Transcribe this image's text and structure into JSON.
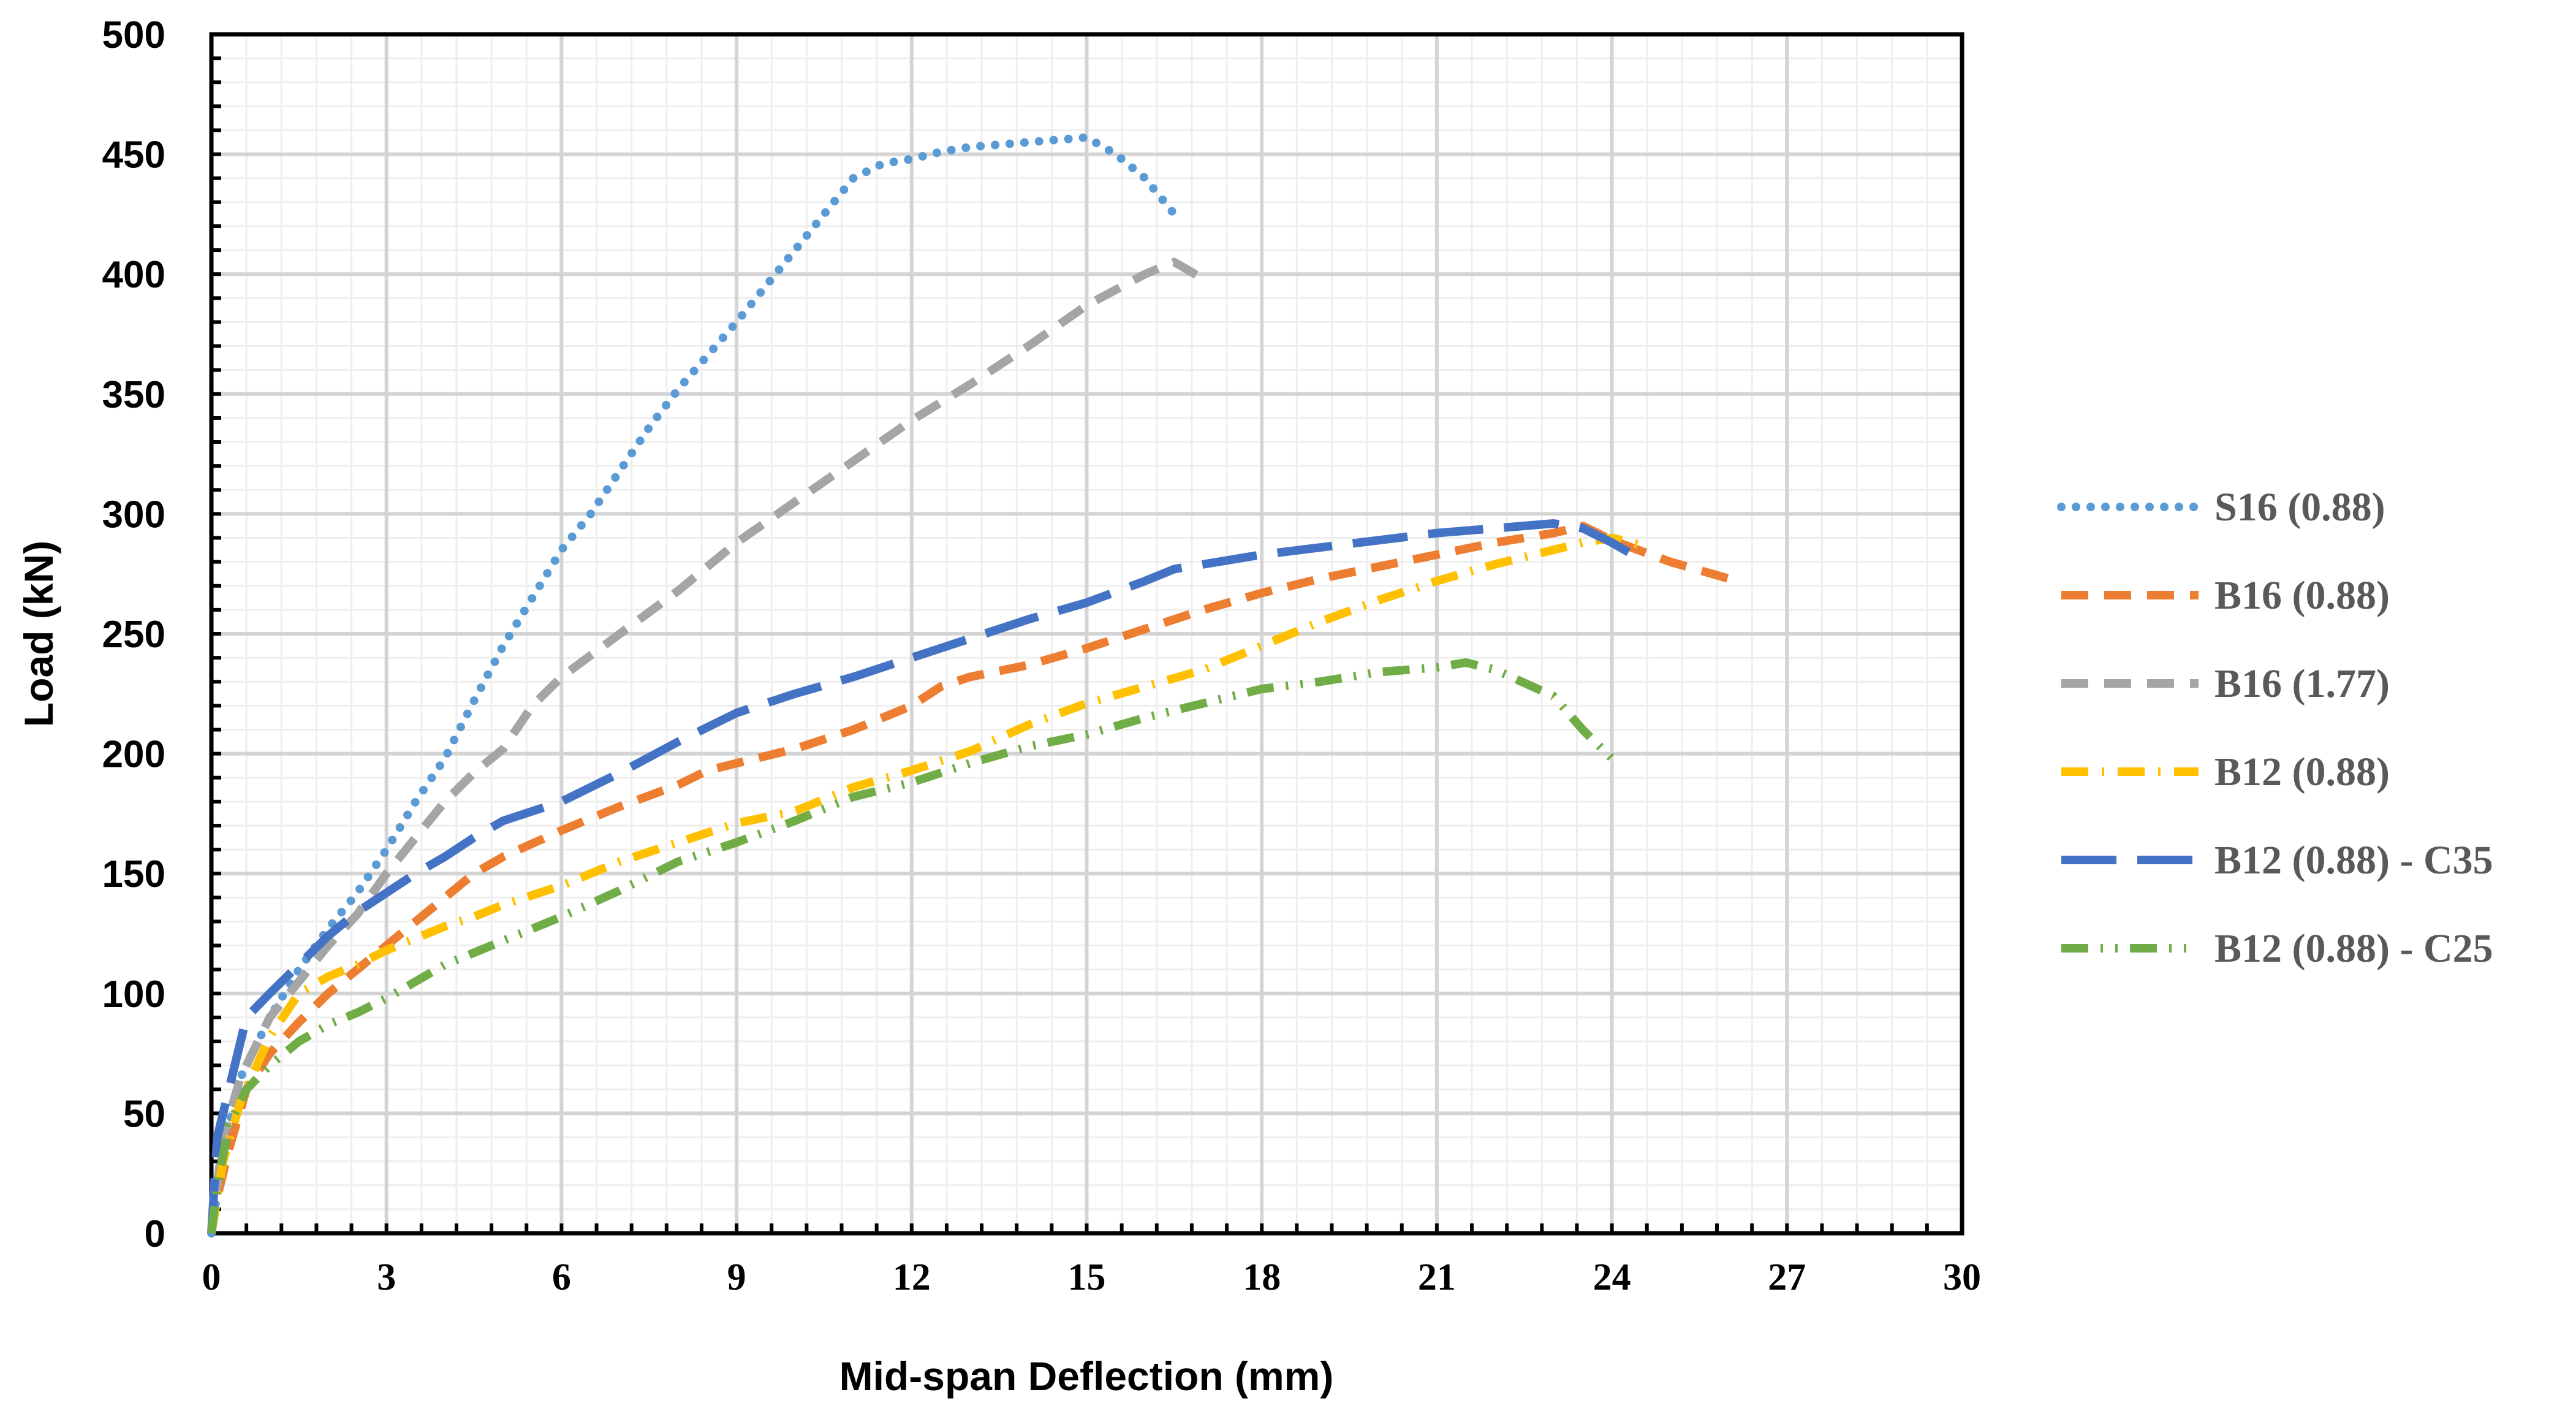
{
  "chart_data": {
    "type": "line",
    "title": "",
    "xlabel": "Mid-span Deflection (mm)",
    "ylabel": "Load (kN)",
    "xlim": [
      0,
      30
    ],
    "ylim": [
      0,
      500
    ],
    "x_ticks": [
      0,
      3,
      6,
      9,
      12,
      15,
      18,
      21,
      24,
      27,
      30
    ],
    "y_ticks": [
      0,
      50,
      100,
      150,
      200,
      250,
      300,
      350,
      400,
      450,
      500
    ],
    "x_tick_labels": [
      "0",
      "3",
      "6",
      "9",
      "12",
      "15",
      "18",
      "21",
      "24",
      "27",
      "30"
    ],
    "y_tick_labels": [
      "0",
      "50",
      "100",
      "150",
      "200",
      "250",
      "300",
      "350",
      "400",
      "450",
      "500"
    ],
    "grid": true,
    "legend_position": "right",
    "series": [
      {
        "name": "S16 (0.88)",
        "color": "#5B9BD5",
        "style": "dotted",
        "points": [
          [
            0,
            0
          ],
          [
            0.2,
            35
          ],
          [
            0.5,
            65
          ],
          [
            1,
            90
          ],
          [
            1.5,
            110
          ],
          [
            2,
            127
          ],
          [
            2.5,
            142
          ],
          [
            3,
            160
          ],
          [
            3.5,
            180
          ],
          [
            4,
            198
          ],
          [
            4.5,
            222
          ],
          [
            5,
            245
          ],
          [
            5.5,
            265
          ],
          [
            6,
            285
          ],
          [
            6.5,
            300
          ],
          [
            7,
            318
          ],
          [
            7.5,
            336
          ],
          [
            8,
            352
          ],
          [
            8.5,
            366
          ],
          [
            9,
            380
          ],
          [
            9.5,
            395
          ],
          [
            10,
            410
          ],
          [
            10.5,
            425
          ],
          [
            11,
            440
          ],
          [
            11.5,
            446
          ],
          [
            12,
            448
          ],
          [
            12.5,
            451
          ],
          [
            13,
            453
          ],
          [
            14,
            455
          ],
          [
            15,
            457
          ],
          [
            15.5,
            450
          ],
          [
            16,
            440
          ],
          [
            16.5,
            425
          ],
          [
            16.6,
            422
          ]
        ]
      },
      {
        "name": "B16 (0.88)",
        "color": "#ED7D31",
        "style": "dashed",
        "points": [
          [
            0,
            0
          ],
          [
            0.1,
            15
          ],
          [
            0.3,
            35
          ],
          [
            0.6,
            60
          ],
          [
            1,
            75
          ],
          [
            1.5,
            88
          ],
          [
            2,
            100
          ],
          [
            2.5,
            110
          ],
          [
            3,
            120
          ],
          [
            3.5,
            130
          ],
          [
            4,
            140
          ],
          [
            4.5,
            150
          ],
          [
            5,
            157
          ],
          [
            6,
            168
          ],
          [
            7,
            178
          ],
          [
            8,
            187
          ],
          [
            8.5,
            193
          ],
          [
            9,
            196
          ],
          [
            10,
            202
          ],
          [
            11,
            210
          ],
          [
            12,
            220
          ],
          [
            12.5,
            228
          ],
          [
            13,
            232
          ],
          [
            14,
            237
          ],
          [
            15,
            244
          ],
          [
            16,
            252
          ],
          [
            17,
            260
          ],
          [
            18,
            267
          ],
          [
            19,
            273
          ],
          [
            20,
            278
          ],
          [
            21,
            283
          ],
          [
            22,
            288
          ],
          [
            23,
            292
          ],
          [
            23.5,
            295
          ],
          [
            24,
            289
          ],
          [
            25,
            280
          ],
          [
            26,
            273
          ]
        ]
      },
      {
        "name": "B16 (1.77)",
        "color": "#A5A5A5",
        "style": "dashed",
        "points": [
          [
            0,
            0
          ],
          [
            0.2,
            40
          ],
          [
            0.5,
            65
          ],
          [
            1,
            90
          ],
          [
            1.5,
            105
          ],
          [
            2,
            120
          ],
          [
            2.5,
            133
          ],
          [
            3,
            150
          ],
          [
            3.5,
            165
          ],
          [
            4,
            180
          ],
          [
            4.5,
            192
          ],
          [
            5,
            202
          ],
          [
            5.5,
            220
          ],
          [
            6,
            232
          ],
          [
            7,
            250
          ],
          [
            8,
            268
          ],
          [
            9,
            288
          ],
          [
            10,
            305
          ],
          [
            11,
            322
          ],
          [
            12,
            339
          ],
          [
            13,
            354
          ],
          [
            14,
            370
          ],
          [
            15,
            387
          ],
          [
            16,
            400
          ],
          [
            16.5,
            405
          ],
          [
            17,
            398
          ]
        ]
      },
      {
        "name": "B12 (0.88)",
        "color": "#FFC000",
        "style": "dash-dot",
        "points": [
          [
            0,
            0
          ],
          [
            0.2,
            30
          ],
          [
            0.5,
            55
          ],
          [
            1,
            82
          ],
          [
            1.5,
            100
          ],
          [
            2,
            107
          ],
          [
            2.5,
            112
          ],
          [
            3,
            118
          ],
          [
            3.5,
            123
          ],
          [
            4,
            128
          ],
          [
            4.5,
            132
          ],
          [
            5,
            137
          ],
          [
            6,
            145
          ],
          [
            7,
            155
          ],
          [
            8,
            163
          ],
          [
            9,
            171
          ],
          [
            10,
            176
          ],
          [
            11,
            186
          ],
          [
            12,
            193
          ],
          [
            13,
            201
          ],
          [
            14,
            212
          ],
          [
            15,
            221
          ],
          [
            16,
            228
          ],
          [
            17,
            235
          ],
          [
            18,
            245
          ],
          [
            19,
            255
          ],
          [
            20,
            264
          ],
          [
            21,
            272
          ],
          [
            22,
            279
          ],
          [
            23,
            285
          ],
          [
            23.5,
            288
          ],
          [
            24,
            290
          ],
          [
            24.5,
            287
          ]
        ]
      },
      {
        "name": "B12 (0.88) - C35",
        "color": "#4472C4",
        "style": "long-dash",
        "points": [
          [
            0,
            0
          ],
          [
            0.1,
            40
          ],
          [
            0.3,
            60
          ],
          [
            0.6,
            90
          ],
          [
            1,
            100
          ],
          [
            1.5,
            112
          ],
          [
            2,
            124
          ],
          [
            2.5,
            134
          ],
          [
            3,
            142
          ],
          [
            3.5,
            150
          ],
          [
            4,
            157
          ],
          [
            4.5,
            165
          ],
          [
            5,
            172
          ],
          [
            6,
            180
          ],
          [
            7,
            192
          ],
          [
            8,
            205
          ],
          [
            9,
            217
          ],
          [
            10,
            225
          ],
          [
            11,
            232
          ],
          [
            12,
            240
          ],
          [
            13,
            248
          ],
          [
            14,
            256
          ],
          [
            15,
            263
          ],
          [
            16,
            272
          ],
          [
            16.5,
            277
          ],
          [
            17,
            279
          ],
          [
            18,
            283
          ],
          [
            19,
            286
          ],
          [
            20,
            289
          ],
          [
            21,
            292
          ],
          [
            22,
            294
          ],
          [
            23,
            296
          ],
          [
            23.5,
            294
          ],
          [
            24,
            288
          ],
          [
            24.5,
            281
          ]
        ]
      },
      {
        "name": "B12 (0.88) - C25",
        "color": "#70AD47",
        "style": "dash-dot-dot",
        "points": [
          [
            0,
            0
          ],
          [
            0.1,
            20
          ],
          [
            0.3,
            45
          ],
          [
            0.6,
            60
          ],
          [
            1,
            70
          ],
          [
            1.5,
            80
          ],
          [
            2,
            87
          ],
          [
            2.5,
            92
          ],
          [
            3,
            98
          ],
          [
            4,
            112
          ],
          [
            5,
            122
          ],
          [
            6,
            132
          ],
          [
            7,
            143
          ],
          [
            8,
            155
          ],
          [
            9,
            163
          ],
          [
            10,
            172
          ],
          [
            11,
            182
          ],
          [
            12,
            188
          ],
          [
            13,
            196
          ],
          [
            14,
            203
          ],
          [
            15,
            208
          ],
          [
            16,
            215
          ],
          [
            17,
            221
          ],
          [
            18,
            227
          ],
          [
            19,
            230
          ],
          [
            20,
            234
          ],
          [
            21,
            236
          ],
          [
            21.5,
            238
          ],
          [
            22,
            235
          ],
          [
            23,
            224
          ],
          [
            23.5,
            210
          ],
          [
            24,
            198
          ]
        ]
      }
    ]
  }
}
